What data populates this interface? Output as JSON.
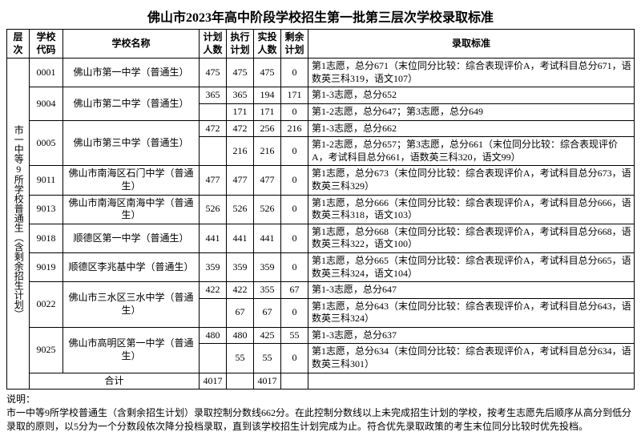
{
  "title": "佛山市2023年高中阶段学校招生第一批第三层次学校录取标准",
  "headers": {
    "tier": "层次",
    "code": "学校代码",
    "name": "学校名称",
    "plan": "计划人数",
    "exec": "执行计划",
    "actual": "实投人数",
    "remain": "剩余计划",
    "standard": "录取标准"
  },
  "tier_label": "市一中等9所学校普通生（含剩余招生计划）",
  "schools": [
    {
      "code": "0001",
      "name": "佛山市第一中学（普通生）",
      "rowspan": 1,
      "rows": [
        {
          "plan": "475",
          "exec": "475",
          "actual": "475",
          "remain": "0",
          "std": "第1志愿，总分671（末位同分比较：综合表现评价A，考试科目总分671，语数英三科319，语文107）"
        }
      ]
    },
    {
      "code": "9004",
      "name": "佛山市第二中学（普通生）",
      "rowspan": 2,
      "rows": [
        {
          "plan": "365",
          "exec": "365",
          "actual": "194",
          "remain": "171",
          "std": "第1-3志愿，总分652"
        },
        {
          "plan": "",
          "exec": "171",
          "actual": "171",
          "remain": "0",
          "std": "第1-2志愿，总分647；第3志愿，总分649"
        }
      ]
    },
    {
      "code": "0005",
      "name": "佛山市第三中学（普通生）",
      "rowspan": 2,
      "rows": [
        {
          "plan": "472",
          "exec": "472",
          "actual": "256",
          "remain": "216",
          "std": "第1-3志愿，总分662"
        },
        {
          "plan": "",
          "exec": "216",
          "actual": "216",
          "remain": "0",
          "std": "第1-2志愿，总分657；第3志愿，总分661（末位同分比较：综合表现评价A，考试科目总分661，语数英三科320，语文99）"
        }
      ]
    },
    {
      "code": "9011",
      "name": "佛山市南海区石门中学（普通生）",
      "rowspan": 1,
      "rows": [
        {
          "plan": "477",
          "exec": "477",
          "actual": "477",
          "remain": "0",
          "std": "第1志愿，总分673（末位同分比较：综合表现评价A，考试科目总分673，语数英三科329）"
        }
      ]
    },
    {
      "code": "9013",
      "name": "佛山市南海区南海中学（普通生）",
      "rowspan": 1,
      "rows": [
        {
          "plan": "526",
          "exec": "526",
          "actual": "526",
          "remain": "0",
          "std": "第1志愿，总分666（末位同分比较：综合表现评价A，考试科目总分666，语数英三科318，语文103）"
        }
      ]
    },
    {
      "code": "9018",
      "name": "顺德区第一中学（普通生）",
      "rowspan": 1,
      "rows": [
        {
          "plan": "441",
          "exec": "441",
          "actual": "441",
          "remain": "0",
          "std": "第1志愿，总分668（末位同分比较：综合表现评价A，考试科目总分668，语数英三科322，语文100）"
        }
      ]
    },
    {
      "code": "9019",
      "name": "顺德区李兆基中学（普通生）",
      "rowspan": 1,
      "rows": [
        {
          "plan": "359",
          "exec": "359",
          "actual": "359",
          "remain": "0",
          "std": "第1志愿，总分665（末位同分比较：综合表现评价A，考试科目总分665，语数英三科324，语文104）"
        }
      ]
    },
    {
      "code": "0022",
      "name": "佛山市三水区三水中学（普通生）",
      "rowspan": 2,
      "rows": [
        {
          "plan": "422",
          "exec": "422",
          "actual": "355",
          "remain": "67",
          "std": "第1-3志愿，总分647"
        },
        {
          "plan": "",
          "exec": "67",
          "actual": "67",
          "remain": "0",
          "std": "第1志愿，总分643（末位同分比较：综合表现评价A，考试科目总分643，语数英三科324）"
        }
      ]
    },
    {
      "code": "9025",
      "name": "佛山市高明区第一中学（普通生）",
      "rowspan": 2,
      "rows": [
        {
          "plan": "480",
          "exec": "480",
          "actual": "425",
          "remain": "55",
          "std": "第1-3志愿，总分637"
        },
        {
          "plan": "",
          "exec": "55",
          "actual": "55",
          "remain": "0",
          "std": "第1志愿，总分634（末位同分比较：综合表现评价A，考试科目总分634，语数英三科301）"
        }
      ]
    }
  ],
  "total": {
    "label": "合计",
    "plan": "4017",
    "exec": "",
    "actual": "4017",
    "remain": ""
  },
  "footnote_label": "说明：",
  "footnote": "市一中等9所学校普通生（含剩余招生计划）录取控制分数线662分。在此控制分数线以上未完成招生计划的学校，按考生志愿先后顺序从高分到低分录取的原则，以5分为一个分数段依次降分投档录取，直到该学校招生计划完成为止。符合优先录取政策的考生末位同分比较时优先投档。"
}
